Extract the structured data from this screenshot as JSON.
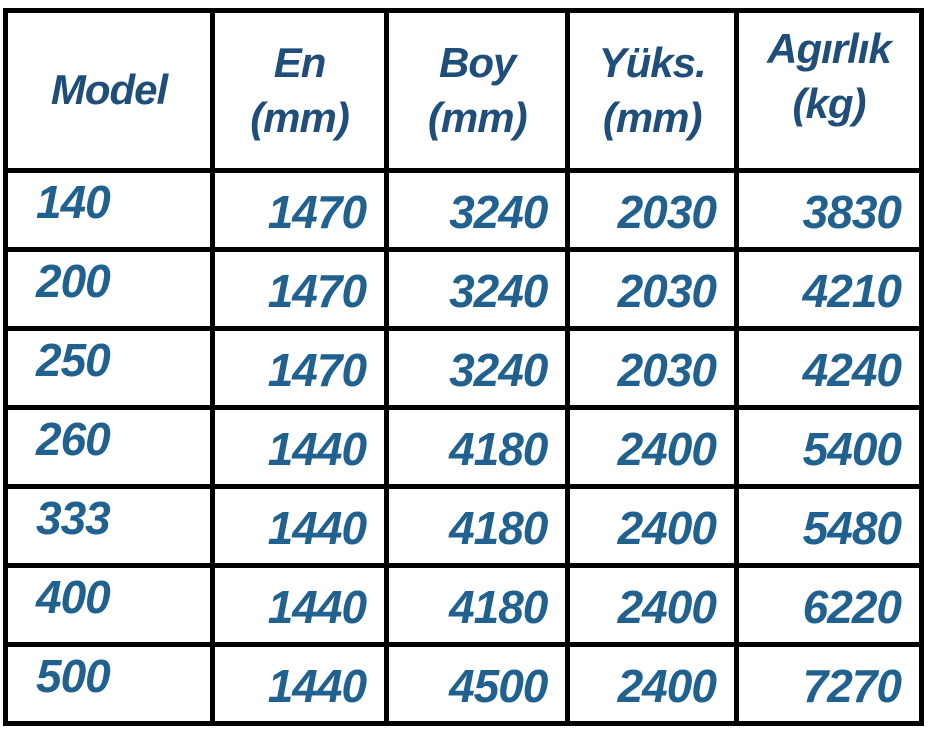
{
  "table": {
    "header": {
      "model": "Model",
      "columns": [
        {
          "label": "En",
          "unit": "(mm)"
        },
        {
          "label": "Boy",
          "unit": "(mm)"
        },
        {
          "label": "Yüks.",
          "unit": "(mm)"
        },
        {
          "label": "Agırlık",
          "unit": "(kg)"
        }
      ]
    },
    "rows": [
      {
        "cells": [
          "140",
          "1470",
          "3240",
          "2030",
          "3830"
        ]
      },
      {
        "cells": [
          "200",
          "1470",
          "3240",
          "2030",
          "4210"
        ]
      },
      {
        "cells": [
          "250",
          "1470",
          "3240",
          "2030",
          "4240"
        ]
      },
      {
        "cells": [
          "260",
          "1440",
          "4180",
          "2400",
          "5400"
        ]
      },
      {
        "cells": [
          "333",
          "1440",
          "4180",
          "2400",
          "5480"
        ]
      },
      {
        "cells": [
          "400",
          "1440",
          "4180",
          "2400",
          "6220"
        ]
      },
      {
        "cells": [
          "500",
          "1440",
          "4500",
          "2400",
          "7270"
        ]
      }
    ]
  },
  "colors": {
    "header_text": "#1E4E79",
    "data_text": "#21618F",
    "border": "#000000",
    "background": "#FFFFFF"
  },
  "chart_data": {
    "type": "table",
    "columns": [
      "Model",
      "En (mm)",
      "Boy (mm)",
      "Yüks. (mm)",
      "Agırlık (kg)"
    ],
    "rows": [
      [
        140,
        1470,
        3240,
        2030,
        3830
      ],
      [
        200,
        1470,
        3240,
        2030,
        4210
      ],
      [
        250,
        1470,
        3240,
        2030,
        4240
      ],
      [
        260,
        1440,
        4180,
        2400,
        5400
      ],
      [
        333,
        1440,
        4180,
        2400,
        5480
      ],
      [
        400,
        1440,
        4180,
        2400,
        6220
      ],
      [
        500,
        1440,
        4500,
        2400,
        7270
      ]
    ]
  }
}
